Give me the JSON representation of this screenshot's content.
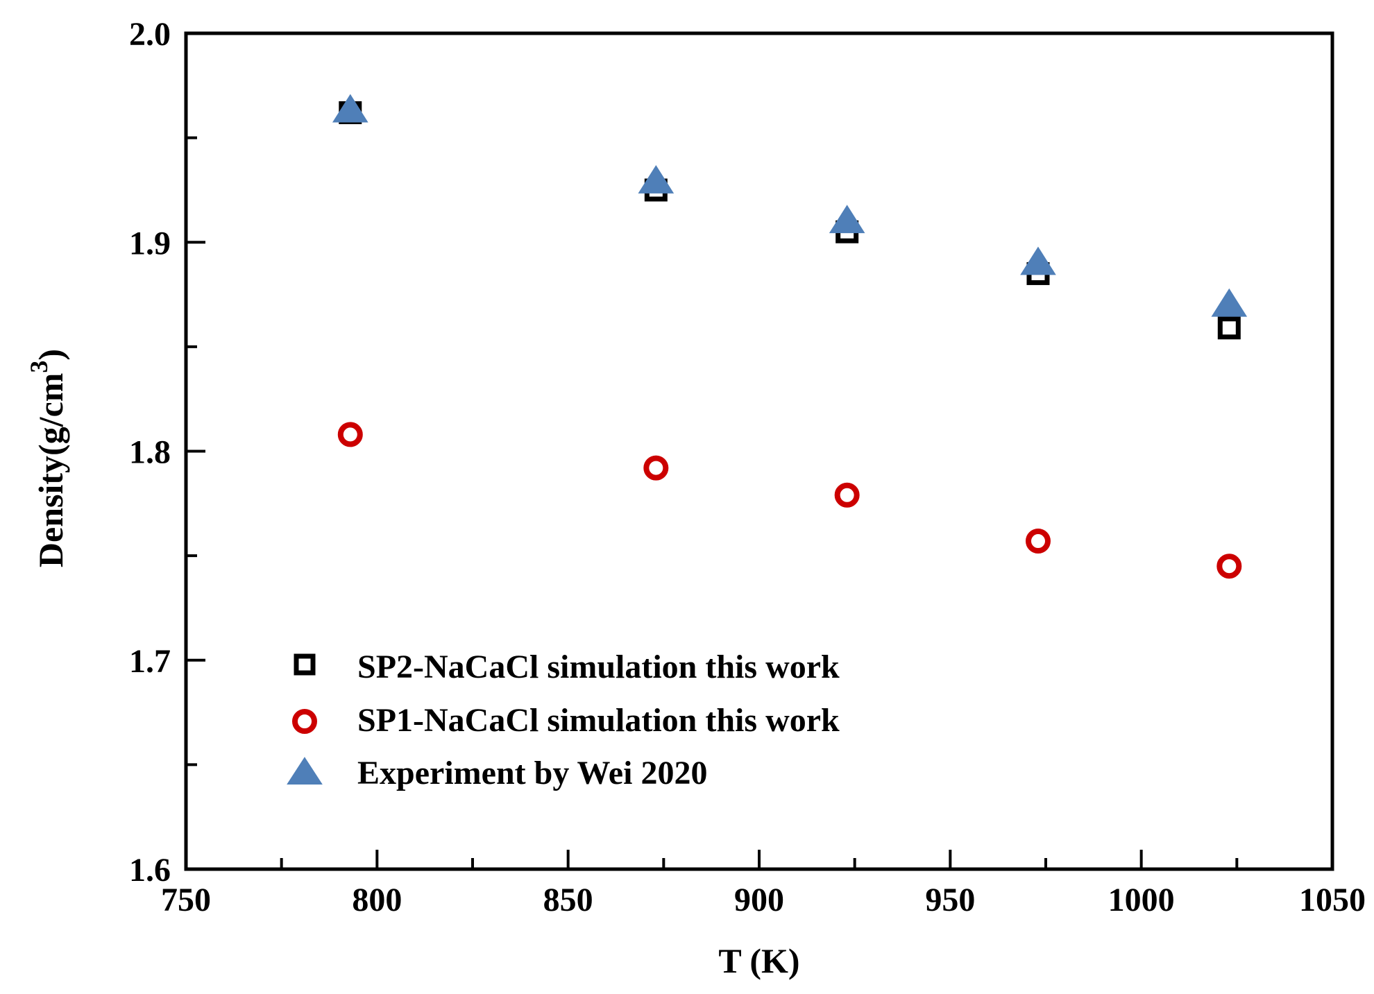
{
  "chart_data": {
    "type": "scatter",
    "xlabel": "T (K)",
    "ylabel": "Density(g/cm",
    "ylabel_superscript": "3",
    "ylabel_suffix": ")",
    "xlim": [
      750,
      1050
    ],
    "ylim": [
      1.6,
      2.0
    ],
    "x_major_ticks": [
      750,
      800,
      850,
      900,
      950,
      1000,
      1050
    ],
    "x_minor_step": 25,
    "y_major_ticks": [
      1.6,
      1.7,
      1.8,
      1.9,
      2.0
    ],
    "y_minor_step": 0.05,
    "x_tick_labels": [
      "750",
      "800",
      "850",
      "900",
      "950",
      "1000",
      "1050"
    ],
    "y_tick_labels": [
      "1.6",
      "1.7",
      "1.8",
      "1.9",
      "2.0"
    ],
    "legend_position": "lower-left",
    "series": [
      {
        "name": "SP2-NaCaCl  simulation this work",
        "marker": "square",
        "color": "#000000",
        "x": [
          793,
          873,
          923,
          973,
          1023
        ],
        "y": [
          1.962,
          1.925,
          1.905,
          1.885,
          1.859
        ]
      },
      {
        "name": "SP1-NaCaCl  simulation this work",
        "marker": "circle",
        "color": "#cc0000",
        "x": [
          793,
          873,
          923,
          973,
          1023
        ],
        "y": [
          1.808,
          1.792,
          1.779,
          1.757,
          1.745
        ]
      },
      {
        "name": "Experiment by  Wei  2020",
        "marker": "triangle",
        "color": "#4f7fb8",
        "x": [
          793,
          873,
          923,
          973,
          1023
        ],
        "y": [
          1.963,
          1.929,
          1.91,
          1.89,
          1.87
        ]
      }
    ]
  }
}
